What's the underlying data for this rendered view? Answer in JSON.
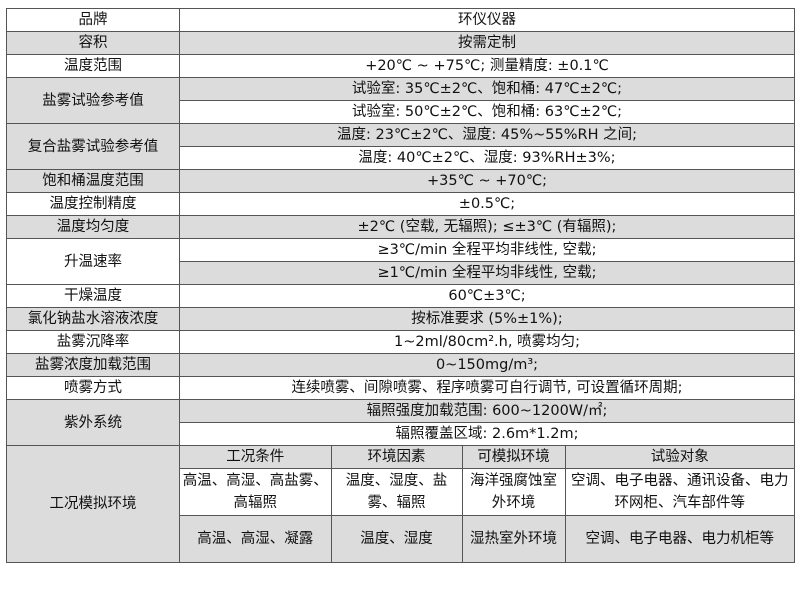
{
  "rows": [
    {
      "label": "品牌",
      "values": [
        "环仪仪器"
      ]
    },
    {
      "label": "容积",
      "values": [
        "按需定制"
      ]
    },
    {
      "label": "温度范围",
      "values": [
        "+20℃ ~ +75℃; 测量精度: ±0.1℃"
      ]
    },
    {
      "label": "盐雾试验参考值",
      "values": [
        "试验室: 35℃±2℃、饱和桶: 47℃±2℃;",
        "试验室: 50℃±2℃、饱和桶: 63℃±2℃;"
      ]
    },
    {
      "label": "复合盐雾试验参考值",
      "values": [
        "温度: 23℃±2℃、湿度: 45%~55%RH 之间;",
        "温度: 40℃±2℃、湿度: 93%RH±3%;"
      ]
    },
    {
      "label": "饱和桶温度范围",
      "values": [
        "+35℃ ~ +70℃;"
      ]
    },
    {
      "label": "温度控制精度",
      "values": [
        "±0.5℃;"
      ]
    },
    {
      "label": "温度均匀度",
      "values": [
        "±2℃ (空载, 无辐照); ≤±3℃ (有辐照);"
      ]
    },
    {
      "label": "升温速率",
      "values": [
        "≥3℃/min 全程平均非线性, 空载;",
        "≥1℃/min 全程平均非线性, 空载;"
      ]
    },
    {
      "label": "干燥温度",
      "values": [
        "60℃±3℃;"
      ]
    },
    {
      "label": "氯化钠盐水溶液浓度",
      "values": [
        "按标准要求 (5%±1%);"
      ]
    },
    {
      "label": "盐雾沉降率",
      "values": [
        "1~2ml/80cm².h, 喷雾均匀;"
      ]
    },
    {
      "label": "盐雾浓度加载范围",
      "values": [
        "0~150mg/m³;"
      ]
    },
    {
      "label": "喷雾方式",
      "values": [
        "连续喷雾、间隙喷雾、程序喷雾可自行调节, 可设置循环周期;"
      ]
    },
    {
      "label": "紫外系统",
      "values": [
        "辐照强度加载范围: 600~1200W/㎡;",
        "辐照覆盖区域: 2.6m*1.2m;"
      ]
    }
  ],
  "conditions": {
    "label": "工况模拟环境",
    "headers": [
      "工况条件",
      "环境因素",
      "可模拟环境",
      "试验对象"
    ],
    "rows": [
      [
        "高温、高湿、高盐雾、高辐照",
        "温度、湿度、盐雾、辐照",
        "海洋强腐蚀室外环境",
        "空调、电子电器、通讯设备、电力环网柜、汽车部件等"
      ],
      [
        "高温、高湿、凝露",
        "温度、湿度",
        "湿热室外环境",
        "空调、电子电器、电力机柜等"
      ]
    ]
  }
}
